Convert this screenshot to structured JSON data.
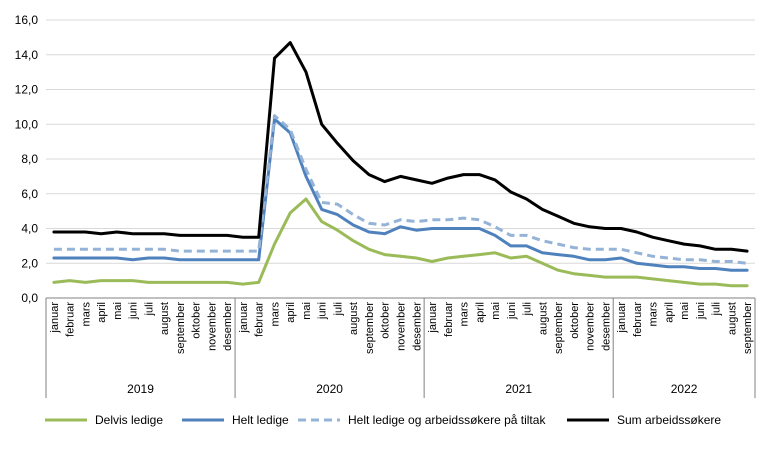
{
  "chart_data": {
    "type": "line",
    "ylim": [
      0,
      16
    ],
    "yticks": [
      "0,0",
      "2,0",
      "4,0",
      "6,0",
      "8,0",
      "10,0",
      "12,0",
      "14,0",
      "16,0"
    ],
    "grid": "horizontal",
    "legend_position": "bottom",
    "months": [
      "januar",
      "februar",
      "mars",
      "april",
      "mai",
      "juni",
      "juli",
      "august",
      "september",
      "oktober",
      "november",
      "desember"
    ],
    "categories": [
      "januar",
      "februar",
      "mars",
      "april",
      "mai",
      "juni",
      "juli",
      "august",
      "september",
      "oktober",
      "november",
      "desember",
      "januar",
      "februar",
      "mars",
      "april",
      "mai",
      "juni",
      "juli",
      "august",
      "september",
      "oktober",
      "november",
      "desember",
      "januar",
      "februar",
      "mars",
      "april",
      "mai",
      "juni",
      "juli",
      "august",
      "september",
      "oktober",
      "november",
      "desember",
      "januar",
      "februar",
      "mars",
      "april",
      "mai",
      "juni",
      "juli",
      "august",
      "september"
    ],
    "years": [
      {
        "label": "2019",
        "count": 12
      },
      {
        "label": "2020",
        "count": 12
      },
      {
        "label": "2021",
        "count": 12
      },
      {
        "label": "2022",
        "count": 9
      }
    ],
    "series": [
      {
        "name": "Delvis ledige",
        "color": "#9BBB59",
        "dash": "solid",
        "values": [
          0.9,
          1.0,
          0.9,
          1.0,
          1.0,
          1.0,
          0.9,
          0.9,
          0.9,
          0.9,
          0.9,
          0.9,
          0.8,
          0.9,
          3.1,
          4.9,
          5.7,
          4.4,
          3.9,
          3.3,
          2.8,
          2.5,
          2.4,
          2.3,
          2.1,
          2.3,
          2.4,
          2.5,
          2.6,
          2.3,
          2.4,
          2.0,
          1.6,
          1.4,
          1.3,
          1.2,
          1.2,
          1.2,
          1.1,
          1.0,
          0.9,
          0.8,
          0.8,
          0.7,
          0.7
        ]
      },
      {
        "name": "Helt ledige",
        "color": "#4F81BD",
        "dash": "solid",
        "values": [
          2.3,
          2.3,
          2.3,
          2.3,
          2.3,
          2.2,
          2.3,
          2.3,
          2.2,
          2.2,
          2.2,
          2.2,
          2.2,
          2.2,
          10.3,
          9.5,
          7.0,
          5.1,
          4.8,
          4.2,
          3.8,
          3.7,
          4.1,
          3.9,
          4.0,
          4.0,
          4.0,
          4.0,
          3.6,
          3.0,
          3.0,
          2.6,
          2.5,
          2.4,
          2.2,
          2.2,
          2.3,
          2.0,
          1.9,
          1.8,
          1.8,
          1.7,
          1.7,
          1.6,
          1.6
        ]
      },
      {
        "name": "Helt ledige og arbeidssøkere på tiltak",
        "color": "#95B3D7",
        "dash": "dashed",
        "values": [
          2.8,
          2.8,
          2.8,
          2.8,
          2.8,
          2.8,
          2.8,
          2.8,
          2.7,
          2.7,
          2.7,
          2.7,
          2.7,
          2.7,
          10.5,
          9.7,
          7.4,
          5.5,
          5.4,
          4.8,
          4.3,
          4.2,
          4.5,
          4.4,
          4.5,
          4.5,
          4.6,
          4.5,
          4.1,
          3.6,
          3.6,
          3.3,
          3.1,
          2.9,
          2.8,
          2.8,
          2.8,
          2.6,
          2.4,
          2.3,
          2.2,
          2.2,
          2.1,
          2.1,
          2.0
        ]
      },
      {
        "name": "Sum arbeidssøkere",
        "color": "#000000",
        "dash": "solid",
        "values": [
          3.8,
          3.8,
          3.8,
          3.7,
          3.8,
          3.7,
          3.7,
          3.7,
          3.6,
          3.6,
          3.6,
          3.6,
          3.5,
          3.5,
          13.8,
          14.7,
          13.0,
          10.0,
          8.9,
          7.9,
          7.1,
          6.7,
          7.0,
          6.8,
          6.6,
          6.9,
          7.1,
          7.1,
          6.8,
          6.1,
          5.7,
          5.1,
          4.7,
          4.3,
          4.1,
          4.0,
          4.0,
          3.8,
          3.5,
          3.3,
          3.1,
          3.0,
          2.8,
          2.8,
          2.7
        ]
      }
    ]
  }
}
